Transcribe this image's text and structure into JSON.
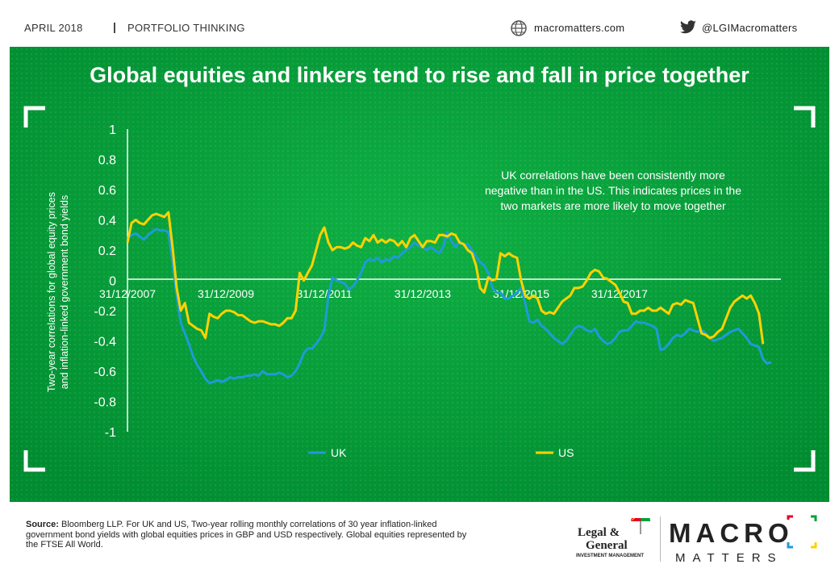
{
  "header": {
    "date_label": "APRIL 2018",
    "separator": "|",
    "section_label": "PORTFOLIO THINKING",
    "website": "macromatters.com",
    "twitter": "@LGIMacromatters",
    "globe_icon": "globe-icon",
    "twitter_icon": "twitter-bird-icon"
  },
  "footer": {
    "source_label": "Source:",
    "source_text": " Bloomberg LLP. For UK and US, Two-year rolling monthly correlations of 30 year inflation-linked government bond yields with global equities prices in GBP and USD respectively. Global equities represented by the FTSE All World.",
    "lg_logo_line1": "Legal &",
    "lg_logo_line2": "General",
    "lg_logo_line3": "INVESTMENT MANAGEMENT",
    "mm_logo_word1": "MACRO",
    "mm_logo_word2": "MATTERS"
  },
  "colors": {
    "panel_bg": "#00a23a",
    "uk": "#1e9bd7",
    "us": "#ffd200",
    "text": "#ffffff"
  },
  "chart_data": {
    "type": "line",
    "title": "Global equities and linkers tend to rise and fall in price together",
    "ylabel": "Two-year correlations for global equity prices and inflation-linked government bond yields",
    "ylabel_line1": "Two-year correlations for global equity prices",
    "ylabel_line2": "and inflation-linked government bond yields",
    "xlabel": "",
    "ylim": [
      -1,
      1
    ],
    "yticks": [
      1,
      0.8,
      0.6,
      0.4,
      0.2,
      0,
      -0.2,
      -0.4,
      -0.6,
      -0.8,
      -1
    ],
    "ytick_labels": [
      "1",
      "0.8",
      "0.6",
      "0.4",
      "0.2",
      "0",
      "-0.2",
      "-0.4",
      "-0.6",
      "-0.8",
      "-1"
    ],
    "x_start": "2007-12",
    "x_end": "2018-03",
    "xtick_labels": [
      "31/12/2007",
      "31/12/2009",
      "31/12/2011",
      "31/12/2013",
      "31/12/2015",
      "31/12/2017"
    ],
    "xtick_months": [
      0,
      24,
      48,
      72,
      96,
      120
    ],
    "annotation": "UK correlations have been consistently more negative than in the US. This indicates prices in the two markets are more likely to move together",
    "annotation_lines": [
      "UK correlations have been consistently more",
      "negative than in the US. This indicates prices in the",
      "two markets are more likely to move together"
    ],
    "legend_position": "bottom",
    "grid": false,
    "series": [
      {
        "name": "UK",
        "values": [
          0.28,
          0.3,
          0.31,
          0.29,
          0.27,
          0.3,
          0.32,
          0.34,
          0.33,
          0.33,
          0.32,
          0.12,
          -0.1,
          -0.28,
          -0.35,
          -0.42,
          -0.5,
          -0.56,
          -0.6,
          -0.65,
          -0.68,
          -0.67,
          -0.66,
          -0.67,
          -0.66,
          -0.64,
          -0.65,
          -0.64,
          -0.64,
          -0.63,
          -0.63,
          -0.62,
          -0.63,
          -0.6,
          -0.62,
          -0.62,
          -0.62,
          -0.61,
          -0.62,
          -0.64,
          -0.63,
          -0.6,
          -0.55,
          -0.48,
          -0.45,
          -0.45,
          -0.42,
          -0.38,
          -0.33,
          -0.1,
          0.02,
          0.0,
          -0.01,
          -0.02,
          -0.06,
          -0.04,
          0.0,
          0.05,
          0.12,
          0.14,
          0.13,
          0.15,
          0.12,
          0.14,
          0.13,
          0.16,
          0.15,
          0.18,
          0.2,
          0.22,
          0.25,
          0.23,
          0.22,
          0.2,
          0.22,
          0.2,
          0.18,
          0.22,
          0.32,
          0.26,
          0.22,
          0.26,
          0.23,
          0.24,
          0.2,
          0.16,
          0.12,
          0.1,
          0.05,
          -0.05,
          -0.08,
          -0.08,
          -0.12,
          -0.12,
          -0.1,
          -0.08,
          -0.05,
          -0.15,
          -0.27,
          -0.28,
          -0.26,
          -0.3,
          -0.32,
          -0.35,
          -0.38,
          -0.4,
          -0.42,
          -0.4,
          -0.36,
          -0.32,
          -0.3,
          -0.31,
          -0.33,
          -0.34,
          -0.32,
          -0.37,
          -0.4,
          -0.42,
          -0.41,
          -0.38,
          -0.34,
          -0.33,
          -0.33,
          -0.3,
          -0.27,
          -0.28,
          -0.28,
          -0.29,
          -0.3,
          -0.32,
          -0.46,
          -0.45,
          -0.42,
          -0.38,
          -0.36,
          -0.37,
          -0.35,
          -0.32,
          -0.33,
          -0.34,
          -0.33,
          -0.35,
          -0.38,
          -0.4,
          -0.39,
          -0.38,
          -0.36,
          -0.34,
          -0.33,
          -0.32,
          -0.35,
          -0.38,
          -0.42,
          -0.43,
          -0.44,
          -0.52,
          -0.55,
          -0.54
        ]
      },
      {
        "name": "US",
        "values": [
          0.25,
          0.38,
          0.4,
          0.38,
          0.37,
          0.4,
          0.43,
          0.44,
          0.43,
          0.42,
          0.45,
          0.22,
          -0.05,
          -0.2,
          -0.15,
          -0.28,
          -0.3,
          -0.32,
          -0.33,
          -0.38,
          -0.22,
          -0.24,
          -0.25,
          -0.22,
          -0.2,
          -0.2,
          -0.21,
          -0.23,
          -0.23,
          -0.25,
          -0.27,
          -0.28,
          -0.27,
          -0.27,
          -0.28,
          -0.29,
          -0.29,
          -0.3,
          -0.28,
          -0.25,
          -0.25,
          -0.2,
          0.05,
          0.0,
          0.05,
          0.1,
          0.2,
          0.3,
          0.35,
          0.25,
          0.2,
          0.22,
          0.22,
          0.21,
          0.22,
          0.25,
          0.23,
          0.22,
          0.28,
          0.26,
          0.3,
          0.25,
          0.27,
          0.25,
          0.27,
          0.26,
          0.23,
          0.26,
          0.22,
          0.28,
          0.3,
          0.26,
          0.22,
          0.26,
          0.26,
          0.25,
          0.3,
          0.3,
          0.29,
          0.31,
          0.3,
          0.25,
          0.24,
          0.2,
          0.18,
          0.1,
          -0.05,
          -0.08,
          0.02,
          0.0,
          0.01,
          0.18,
          0.16,
          0.18,
          0.16,
          0.15,
          0.0,
          -0.1,
          -0.12,
          -0.1,
          -0.12,
          -0.2,
          -0.22,
          -0.21,
          -0.22,
          -0.18,
          -0.14,
          -0.12,
          -0.1,
          -0.05,
          -0.05,
          -0.04,
          0.0,
          0.05,
          0.07,
          0.06,
          0.02,
          0.01,
          -0.01,
          -0.03,
          -0.08,
          -0.14,
          -0.15,
          -0.22,
          -0.22,
          -0.2,
          -0.2,
          -0.18,
          -0.2,
          -0.2,
          -0.18,
          -0.2,
          -0.22,
          -0.16,
          -0.15,
          -0.16,
          -0.13,
          -0.14,
          -0.15,
          -0.25,
          -0.35,
          -0.36,
          -0.38,
          -0.37,
          -0.34,
          -0.32,
          -0.25,
          -0.18,
          -0.14,
          -0.12,
          -0.1,
          -0.12,
          -0.1,
          -0.15,
          -0.22,
          -0.42
        ]
      }
    ]
  }
}
